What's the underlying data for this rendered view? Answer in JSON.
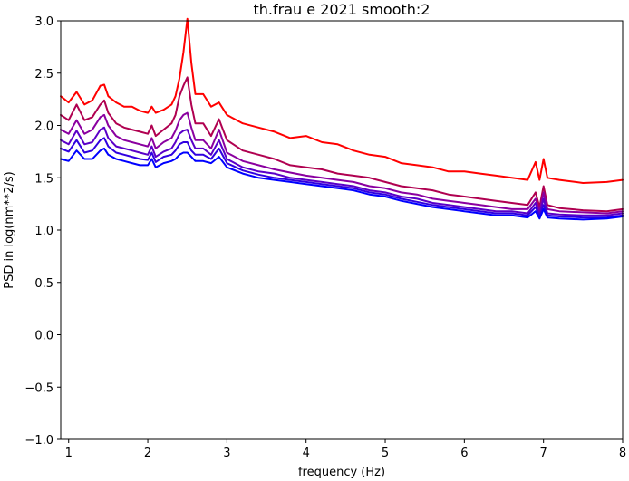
{
  "chart_data": {
    "type": "line",
    "title": "th.frau e 2021 smooth:2",
    "xlabel": "frequency (Hz)",
    "ylabel": "PSD in log(nm**2/s)",
    "xlim": [
      0.9,
      8.0
    ],
    "ylim": [
      -1.0,
      3.0
    ],
    "xticks": [
      1,
      2,
      3,
      4,
      5,
      6,
      7,
      8
    ],
    "yticks": [
      -1.0,
      -0.5,
      0.0,
      0.5,
      1.0,
      1.5,
      2.0,
      2.5,
      3.0
    ],
    "xtick_labels": [
      "1",
      "2",
      "3",
      "4",
      "5",
      "6",
      "7",
      "8"
    ],
    "ytick_labels": [
      "−1.0",
      "−0.5",
      "0.0",
      "0.5",
      "1.0",
      "1.5",
      "2.0",
      "2.5",
      "3.0"
    ],
    "grid": false,
    "legend": "none",
    "series": [
      {
        "color": "#ff0000",
        "x": [
          0.9,
          1.0,
          1.1,
          1.2,
          1.3,
          1.4,
          1.45,
          1.5,
          1.6,
          1.7,
          1.8,
          1.9,
          2.0,
          2.05,
          2.1,
          2.2,
          2.3,
          2.35,
          2.4,
          2.45,
          2.5,
          2.55,
          2.6,
          2.7,
          2.8,
          2.9,
          3.0,
          3.2,
          3.4,
          3.6,
          3.8,
          4.0,
          4.2,
          4.4,
          4.6,
          4.8,
          5.0,
          5.2,
          5.4,
          5.6,
          5.8,
          6.0,
          6.2,
          6.4,
          6.6,
          6.8,
          6.9,
          6.95,
          7.0,
          7.05,
          7.2,
          7.5,
          7.8,
          8.0
        ],
        "y": [
          2.28,
          2.22,
          2.32,
          2.2,
          2.24,
          2.38,
          2.39,
          2.28,
          2.22,
          2.18,
          2.18,
          2.14,
          2.12,
          2.18,
          2.12,
          2.15,
          2.2,
          2.28,
          2.45,
          2.7,
          3.02,
          2.6,
          2.3,
          2.3,
          2.18,
          2.22,
          2.1,
          2.02,
          1.98,
          1.94,
          1.88,
          1.9,
          1.84,
          1.82,
          1.76,
          1.72,
          1.7,
          1.64,
          1.62,
          1.6,
          1.56,
          1.56,
          1.54,
          1.52,
          1.5,
          1.48,
          1.65,
          1.48,
          1.68,
          1.5,
          1.48,
          1.45,
          1.46,
          1.48
        ]
      },
      {
        "color": "#b00050",
        "x": [
          0.9,
          1.0,
          1.1,
          1.2,
          1.3,
          1.4,
          1.45,
          1.5,
          1.6,
          1.7,
          1.8,
          1.9,
          2.0,
          2.05,
          2.1,
          2.2,
          2.3,
          2.35,
          2.4,
          2.45,
          2.5,
          2.55,
          2.6,
          2.7,
          2.8,
          2.9,
          3.0,
          3.2,
          3.4,
          3.6,
          3.8,
          4.0,
          4.2,
          4.4,
          4.6,
          4.8,
          5.0,
          5.2,
          5.4,
          5.6,
          5.8,
          6.0,
          6.2,
          6.4,
          6.6,
          6.8,
          6.9,
          6.95,
          7.0,
          7.05,
          7.2,
          7.5,
          7.8,
          8.0
        ],
        "y": [
          2.1,
          2.05,
          2.2,
          2.05,
          2.08,
          2.2,
          2.24,
          2.12,
          2.02,
          1.98,
          1.96,
          1.94,
          1.92,
          2.0,
          1.9,
          1.96,
          2.02,
          2.1,
          2.28,
          2.38,
          2.46,
          2.2,
          2.02,
          2.02,
          1.9,
          2.06,
          1.86,
          1.76,
          1.72,
          1.68,
          1.62,
          1.6,
          1.58,
          1.54,
          1.52,
          1.5,
          1.46,
          1.42,
          1.4,
          1.38,
          1.34,
          1.32,
          1.3,
          1.28,
          1.26,
          1.24,
          1.36,
          1.22,
          1.42,
          1.24,
          1.21,
          1.19,
          1.18,
          1.2
        ]
      },
      {
        "color": "#8a00a0",
        "x": [
          0.9,
          1.0,
          1.1,
          1.2,
          1.3,
          1.4,
          1.45,
          1.5,
          1.6,
          1.7,
          1.8,
          1.9,
          2.0,
          2.05,
          2.1,
          2.2,
          2.3,
          2.35,
          2.4,
          2.45,
          2.5,
          2.55,
          2.6,
          2.7,
          2.8,
          2.9,
          3.0,
          3.2,
          3.4,
          3.6,
          3.8,
          4.0,
          4.2,
          4.4,
          4.6,
          4.8,
          5.0,
          5.2,
          5.4,
          5.6,
          5.8,
          6.0,
          6.2,
          6.4,
          6.6,
          6.8,
          6.9,
          6.95,
          7.0,
          7.05,
          7.2,
          7.5,
          7.8,
          8.0
        ],
        "y": [
          1.96,
          1.92,
          2.05,
          1.92,
          1.96,
          2.08,
          2.1,
          2.0,
          1.9,
          1.86,
          1.84,
          1.82,
          1.8,
          1.88,
          1.78,
          1.84,
          1.88,
          1.95,
          2.05,
          2.1,
          2.12,
          1.98,
          1.86,
          1.86,
          1.78,
          1.96,
          1.74,
          1.66,
          1.62,
          1.58,
          1.55,
          1.52,
          1.5,
          1.48,
          1.46,
          1.42,
          1.4,
          1.36,
          1.34,
          1.3,
          1.28,
          1.26,
          1.24,
          1.22,
          1.2,
          1.2,
          1.3,
          1.18,
          1.36,
          1.2,
          1.18,
          1.17,
          1.16,
          1.18
        ]
      },
      {
        "color": "#5a00c8",
        "x": [
          0.9,
          1.0,
          1.1,
          1.2,
          1.3,
          1.4,
          1.45,
          1.5,
          1.6,
          1.7,
          1.8,
          1.9,
          2.0,
          2.05,
          2.1,
          2.2,
          2.3,
          2.35,
          2.4,
          2.45,
          2.5,
          2.55,
          2.6,
          2.7,
          2.8,
          2.9,
          3.0,
          3.2,
          3.4,
          3.6,
          3.8,
          4.0,
          4.2,
          4.4,
          4.6,
          4.8,
          5.0,
          5.2,
          5.4,
          5.6,
          5.8,
          6.0,
          6.2,
          6.4,
          6.6,
          6.8,
          6.9,
          6.95,
          7.0,
          7.05,
          7.2,
          7.5,
          7.8,
          8.0
        ],
        "y": [
          1.86,
          1.82,
          1.95,
          1.82,
          1.84,
          1.96,
          1.98,
          1.88,
          1.8,
          1.78,
          1.76,
          1.74,
          1.72,
          1.8,
          1.7,
          1.75,
          1.78,
          1.84,
          1.92,
          1.95,
          1.96,
          1.86,
          1.78,
          1.78,
          1.72,
          1.86,
          1.68,
          1.6,
          1.56,
          1.54,
          1.5,
          1.48,
          1.46,
          1.44,
          1.42,
          1.38,
          1.36,
          1.32,
          1.3,
          1.26,
          1.24,
          1.22,
          1.2,
          1.18,
          1.18,
          1.16,
          1.26,
          1.15,
          1.3,
          1.16,
          1.15,
          1.14,
          1.14,
          1.16
        ]
      },
      {
        "color": "#3000e0",
        "x": [
          0.9,
          1.0,
          1.1,
          1.2,
          1.3,
          1.4,
          1.45,
          1.5,
          1.6,
          1.7,
          1.8,
          1.9,
          2.0,
          2.05,
          2.1,
          2.2,
          2.3,
          2.35,
          2.4,
          2.45,
          2.5,
          2.55,
          2.6,
          2.7,
          2.8,
          2.9,
          3.0,
          3.2,
          3.4,
          3.6,
          3.8,
          4.0,
          4.2,
          4.4,
          4.6,
          4.8,
          5.0,
          5.2,
          5.4,
          5.6,
          5.8,
          6.0,
          6.2,
          6.4,
          6.6,
          6.8,
          6.9,
          6.95,
          7.0,
          7.05,
          7.2,
          7.5,
          7.8,
          8.0
        ],
        "y": [
          1.78,
          1.75,
          1.86,
          1.74,
          1.76,
          1.86,
          1.88,
          1.8,
          1.74,
          1.72,
          1.7,
          1.68,
          1.67,
          1.74,
          1.65,
          1.7,
          1.72,
          1.76,
          1.82,
          1.84,
          1.84,
          1.76,
          1.72,
          1.72,
          1.68,
          1.78,
          1.64,
          1.57,
          1.53,
          1.5,
          1.48,
          1.46,
          1.44,
          1.42,
          1.4,
          1.36,
          1.34,
          1.3,
          1.27,
          1.24,
          1.22,
          1.2,
          1.18,
          1.16,
          1.16,
          1.14,
          1.22,
          1.13,
          1.24,
          1.14,
          1.13,
          1.12,
          1.12,
          1.14
        ]
      },
      {
        "color": "#0000ff",
        "x": [
          0.9,
          1.0,
          1.1,
          1.2,
          1.3,
          1.4,
          1.45,
          1.5,
          1.6,
          1.7,
          1.8,
          1.9,
          2.0,
          2.05,
          2.1,
          2.2,
          2.3,
          2.35,
          2.4,
          2.45,
          2.5,
          2.55,
          2.6,
          2.7,
          2.8,
          2.9,
          3.0,
          3.2,
          3.4,
          3.6,
          3.8,
          4.0,
          4.2,
          4.4,
          4.6,
          4.8,
          5.0,
          5.2,
          5.4,
          5.6,
          5.8,
          6.0,
          6.2,
          6.4,
          6.6,
          6.8,
          6.9,
          6.95,
          7.0,
          7.05,
          7.2,
          7.5,
          7.8,
          8.0
        ],
        "y": [
          1.68,
          1.66,
          1.76,
          1.68,
          1.68,
          1.76,
          1.78,
          1.72,
          1.68,
          1.66,
          1.64,
          1.62,
          1.62,
          1.68,
          1.6,
          1.64,
          1.66,
          1.68,
          1.72,
          1.74,
          1.74,
          1.7,
          1.66,
          1.66,
          1.64,
          1.7,
          1.6,
          1.54,
          1.5,
          1.48,
          1.46,
          1.44,
          1.42,
          1.4,
          1.38,
          1.34,
          1.32,
          1.28,
          1.25,
          1.22,
          1.2,
          1.18,
          1.16,
          1.14,
          1.14,
          1.12,
          1.18,
          1.11,
          1.2,
          1.12,
          1.11,
          1.1,
          1.11,
          1.13
        ]
      }
    ]
  }
}
